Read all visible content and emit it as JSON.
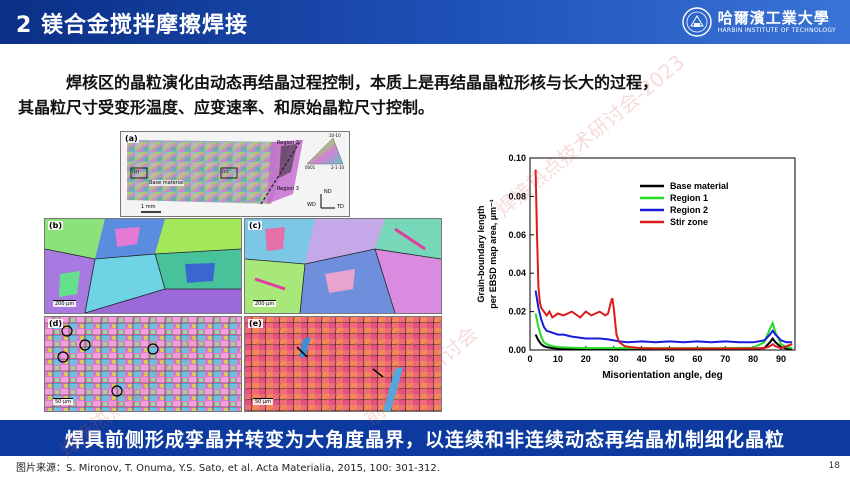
{
  "header": {
    "title": "2 镁合金搅拌摩擦焊接",
    "logo_cn": "哈爾濱工業大學",
    "logo_en": "HARBIN INSTITUTE OF TECHNOLOGY"
  },
  "body": {
    "line1": "焊核区的晶粒演化由动态再结晶过程控制，本质上是再结晶晶粒形核与长大的过程，",
    "line2": "其晶粒尺寸受变形温度、应变速率、和原始晶粒尺寸控制。"
  },
  "figure": {
    "panel_a": {
      "label": "(a)",
      "inset_b": "(b)",
      "inset_c": "(c)",
      "base_material": "Base material",
      "region2": "Region 2",
      "region3": "Region 3",
      "scale": "1 mm",
      "nd": "ND",
      "wd": "WD",
      "td": "TD",
      "key_top": "10-10",
      "key_left": "0001",
      "key_right": "2-1-10"
    },
    "panel_b": {
      "label": "(b)",
      "scale": "200 µm"
    },
    "panel_c": {
      "label": "(c)",
      "scale": "200 µm"
    },
    "panel_d": {
      "label": "(d)",
      "scale": "50 µm"
    },
    "panel_e": {
      "label": "(e)",
      "scale": "50 µm"
    }
  },
  "banner": "焊具前侧形成孪晶并转变为大角度晶界，以连续和非连续动态再结晶机制细化晶粒",
  "source": "图片来源：S. Mironov, T. Onuma, Y.S. Sato, et al. Acta Materialia, 2015, 100: 301-312.",
  "page_number": "18",
  "watermark": [
    "焊接热点技术研讨会",
    "焊接热点技术研讨会-2023",
    "前沿技术研讨会"
  ],
  "chart_data": {
    "type": "line",
    "title": "",
    "xlabel": "Misorientation angle, deg",
    "ylabel": "Grain-boundary length per EBSD map area, µm⁻¹",
    "xlim": [
      0,
      95
    ],
    "ylim": [
      0,
      0.1
    ],
    "xticks": [
      0,
      10,
      20,
      30,
      40,
      50,
      60,
      70,
      80,
      90
    ],
    "yticks": [
      0,
      0.02,
      0.04,
      0.06,
      0.08,
      0.1
    ],
    "xtick_labels": [
      "0",
      "10",
      "20",
      "30",
      "40",
      "50",
      "60",
      "70",
      "80",
      "90"
    ],
    "ytick_labels": [
      "0.00",
      "0.02",
      "0.04",
      "0.06",
      "0.08",
      "0.10"
    ],
    "legend_position": "top-right",
    "series": [
      {
        "name": "Base material",
        "color": "#000000",
        "x": [
          2,
          3,
          4,
          5,
          6,
          8,
          10,
          15,
          20,
          25,
          30,
          35,
          40,
          50,
          60,
          70,
          80,
          84,
          86,
          87,
          88,
          90,
          92,
          94
        ],
        "y": [
          0.008,
          0.005,
          0.003,
          0.002,
          0.0015,
          0.001,
          0.0008,
          0.0007,
          0.0006,
          0.0006,
          0.0006,
          0.0006,
          0.0006,
          0.0006,
          0.0006,
          0.0006,
          0.0006,
          0.001,
          0.004,
          0.006,
          0.004,
          0.0015,
          0.0008,
          0.0006
        ]
      },
      {
        "name": "Region 1",
        "color": "#22dd22",
        "x": [
          2,
          3,
          4,
          5,
          6,
          8,
          10,
          15,
          20,
          25,
          30,
          35,
          40,
          50,
          60,
          70,
          80,
          84,
          86,
          87,
          88,
          90,
          92,
          94
        ],
        "y": [
          0.019,
          0.012,
          0.007,
          0.004,
          0.003,
          0.002,
          0.0015,
          0.0012,
          0.001,
          0.001,
          0.001,
          0.001,
          0.001,
          0.001,
          0.001,
          0.001,
          0.0012,
          0.004,
          0.011,
          0.014,
          0.009,
          0.003,
          0.0015,
          0.001
        ]
      },
      {
        "name": "Region 2",
        "color": "#1a1adc",
        "x": [
          2,
          3,
          4,
          5,
          6,
          8,
          10,
          12,
          15,
          20,
          25,
          28,
          30,
          32,
          35,
          40,
          45,
          50,
          55,
          60,
          65,
          70,
          75,
          80,
          84,
          86,
          87,
          88,
          90,
          92,
          94
        ],
        "y": [
          0.031,
          0.022,
          0.016,
          0.012,
          0.01,
          0.009,
          0.008,
          0.008,
          0.007,
          0.006,
          0.006,
          0.0055,
          0.005,
          0.0045,
          0.004,
          0.0045,
          0.004,
          0.0045,
          0.004,
          0.0045,
          0.004,
          0.0045,
          0.004,
          0.004,
          0.005,
          0.008,
          0.01,
          0.008,
          0.005,
          0.004,
          0.004
        ]
      },
      {
        "name": "Stir zone",
        "color": "#dd1a1a",
        "x": [
          2,
          2.5,
          3,
          3.5,
          4,
          5,
          6,
          7,
          8,
          10,
          12,
          15,
          18,
          20,
          22,
          25,
          27,
          28,
          29,
          29.5,
          30,
          31,
          32,
          34,
          36,
          40,
          45,
          50,
          60,
          70,
          80,
          84,
          86,
          87,
          88,
          90,
          92,
          94
        ],
        "y": [
          0.094,
          0.06,
          0.033,
          0.025,
          0.022,
          0.02,
          0.018,
          0.02,
          0.017,
          0.019,
          0.018,
          0.02,
          0.017,
          0.02,
          0.018,
          0.02,
          0.018,
          0.019,
          0.025,
          0.027,
          0.022,
          0.008,
          0.004,
          0.002,
          0.0015,
          0.001,
          0.0008,
          0.0008,
          0.0008,
          0.0008,
          0.0008,
          0.001,
          0.002,
          0.003,
          0.002,
          0.001,
          0.002,
          0.003
        ]
      }
    ]
  }
}
